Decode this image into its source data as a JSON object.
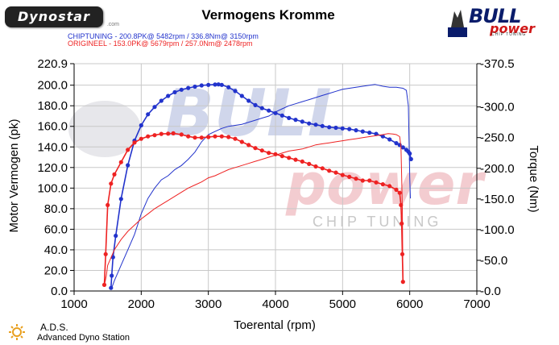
{
  "logo": {
    "text": "Dynostar",
    "suffix": ".com"
  },
  "brand": {
    "main": "BULL",
    "sub": "power",
    "tag": "CHIP TUNING"
  },
  "watermark": {
    "main": "BULL",
    "sub": "power",
    "tag": "CHIP TUNING"
  },
  "footer": {
    "line1": "A.D.S.",
    "line2": "Advanced Dyno Station"
  },
  "colors": {
    "chiptuning": "#2233cc",
    "origineel": "#ee2222",
    "grid": "#c8c8c8",
    "watermark": "#c8d0e8"
  },
  "chart_data": {
    "type": "line",
    "title": "Vermogens Kromme",
    "xlabel": "Toerental (rpm)",
    "ylabel": "Motor Vermogen (pk)",
    "y2label": "Torque (Nm)",
    "xlim": [
      1000,
      7000
    ],
    "ylim": [
      0,
      220.9
    ],
    "y2lim": [
      0,
      370.5
    ],
    "xticks": [
      "1000",
      "2000",
      "3000",
      "4000",
      "5000",
      "6000",
      "7000"
    ],
    "yticks": [
      "0.0",
      "20.0",
      "40.0",
      "60.0",
      "80.0",
      "100.0",
      "120.0",
      "140.0",
      "160.0",
      "180.0",
      "200.0",
      "220.9"
    ],
    "y2ticks": [
      "0.0",
      "50.0",
      "100.0",
      "150.0",
      "200.0",
      "250.0",
      "300.0",
      "370.5"
    ],
    "grid": true,
    "legend": [
      {
        "name": "CHIPTUNING",
        "text": "CHIPTUNING  - 200.8PK@ 5482rpm / 336.8Nm@ 3150rpm",
        "color": "#2233cc"
      },
      {
        "name": "ORIGINEEL",
        "text": "ORIGINEEL  - 153.0PK@ 5679rpm / 257.0Nm@ 2478rpm",
        "color": "#ee2222"
      }
    ],
    "series": [
      {
        "name": "CHIPTUNING",
        "quantity": "torque",
        "axis": "right",
        "color": "#2233cc",
        "x": [
          1550,
          1560,
          1580,
          1620,
          1700,
          1800,
          1900,
          2000,
          2100,
          2200,
          2300,
          2400,
          2500,
          2600,
          2700,
          2800,
          2900,
          3000,
          3100,
          3150,
          3200,
          3300,
          3400,
          3500,
          3600,
          3700,
          3800,
          3900,
          4000,
          4100,
          4200,
          4300,
          4400,
          4500,
          4600,
          4700,
          4800,
          4900,
          5000,
          5100,
          5200,
          5300,
          5400,
          5500,
          5600,
          5700,
          5800,
          5850,
          5900,
          5950,
          5980,
          6000,
          6020
        ],
        "y": [
          5,
          25,
          55,
          90,
          150,
          205,
          245,
          270,
          288,
          300,
          310,
          318,
          324,
          328,
          331,
          333,
          335,
          336,
          336.5,
          336.8,
          336,
          332,
          326,
          318,
          310,
          303,
          298,
          294,
          290,
          286,
          282,
          279,
          276,
          273,
          271,
          269,
          267,
          266,
          265,
          264,
          262,
          260,
          258,
          256,
          252,
          247,
          241,
          238,
          234,
          230,
          227,
          224,
          215
        ]
      },
      {
        "name": "CHIPTUNING",
        "quantity": "power",
        "axis": "left",
        "color": "#2233cc",
        "x": [
          1560,
          1600,
          1700,
          1800,
          1900,
          2000,
          2100,
          2200,
          2300,
          2400,
          2500,
          2600,
          2700,
          2800,
          2900,
          3000,
          3100,
          3200,
          3300,
          3400,
          3500,
          3600,
          3700,
          3800,
          3900,
          4000,
          4100,
          4200,
          4300,
          4400,
          4500,
          4600,
          4700,
          4800,
          4900,
          5000,
          5100,
          5200,
          5300,
          5400,
          5482,
          5600,
          5700,
          5800,
          5900,
          5950,
          5980,
          6000,
          6010
        ],
        "y": [
          3,
          10,
          25,
          40,
          55,
          75,
          90,
          100,
          108,
          112,
          118,
          122,
          128,
          135,
          145,
          152,
          155,
          158,
          160,
          161,
          162,
          164,
          166,
          168,
          170,
          174,
          177,
          180,
          182,
          184,
          186,
          188,
          190,
          192,
          194,
          196,
          197,
          198,
          199,
          200,
          200.8,
          199,
          198,
          198,
          197,
          195,
          180,
          110,
          90
        ]
      },
      {
        "name": "ORIGINEEL",
        "quantity": "torque",
        "axis": "right",
        "color": "#ee2222",
        "x": [
          1450,
          1470,
          1500,
          1550,
          1600,
          1700,
          1800,
          1900,
          2000,
          2100,
          2200,
          2300,
          2400,
          2478,
          2600,
          2700,
          2800,
          2900,
          3000,
          3100,
          3200,
          3300,
          3400,
          3500,
          3600,
          3700,
          3800,
          3900,
          4000,
          4100,
          4200,
          4300,
          4400,
          4500,
          4600,
          4700,
          4800,
          4900,
          5000,
          5100,
          5200,
          5300,
          5400,
          5500,
          5600,
          5700,
          5800,
          5850,
          5870,
          5880,
          5890,
          5900
        ],
        "y": [
          10,
          60,
          140,
          175,
          190,
          210,
          230,
          242,
          248,
          252,
          254,
          256,
          256.5,
          257,
          255,
          252,
          250,
          250,
          251,
          252,
          252,
          251,
          248,
          243,
          238,
          233,
          229,
          225,
          223,
          220,
          217,
          214,
          211,
          207,
          203,
          200,
          196,
          193,
          189,
          186,
          183,
          180,
          180,
          177,
          174,
          171,
          165,
          160,
          140,
          110,
          60,
          15
        ]
      },
      {
        "name": "ORIGINEEL",
        "quantity": "power",
        "axis": "left",
        "color": "#ee2222",
        "x": [
          1450,
          1480,
          1500,
          1600,
          1700,
          1800,
          1900,
          2000,
          2100,
          2200,
          2300,
          2400,
          2500,
          2600,
          2700,
          2800,
          2900,
          3000,
          3100,
          3200,
          3300,
          3400,
          3500,
          3600,
          3700,
          3800,
          3900,
          4000,
          4100,
          4200,
          4300,
          4400,
          4500,
          4600,
          4700,
          4800,
          4900,
          5000,
          5100,
          5200,
          5300,
          5400,
          5500,
          5600,
          5679,
          5750,
          5800,
          5850,
          5870,
          5880,
          5890,
          5900
        ],
        "y": [
          5,
          15,
          25,
          40,
          50,
          58,
          64,
          70,
          75,
          80,
          84,
          88,
          92,
          96,
          100,
          103,
          106,
          110,
          112,
          115,
          118,
          120,
          122,
          124,
          126,
          128,
          130,
          132,
          134,
          136,
          137,
          138,
          140,
          142,
          143,
          144,
          145,
          146,
          147,
          148,
          149,
          150,
          151,
          152,
          153,
          152.5,
          152,
          150,
          140,
          110,
          80,
          10
        ]
      }
    ]
  }
}
